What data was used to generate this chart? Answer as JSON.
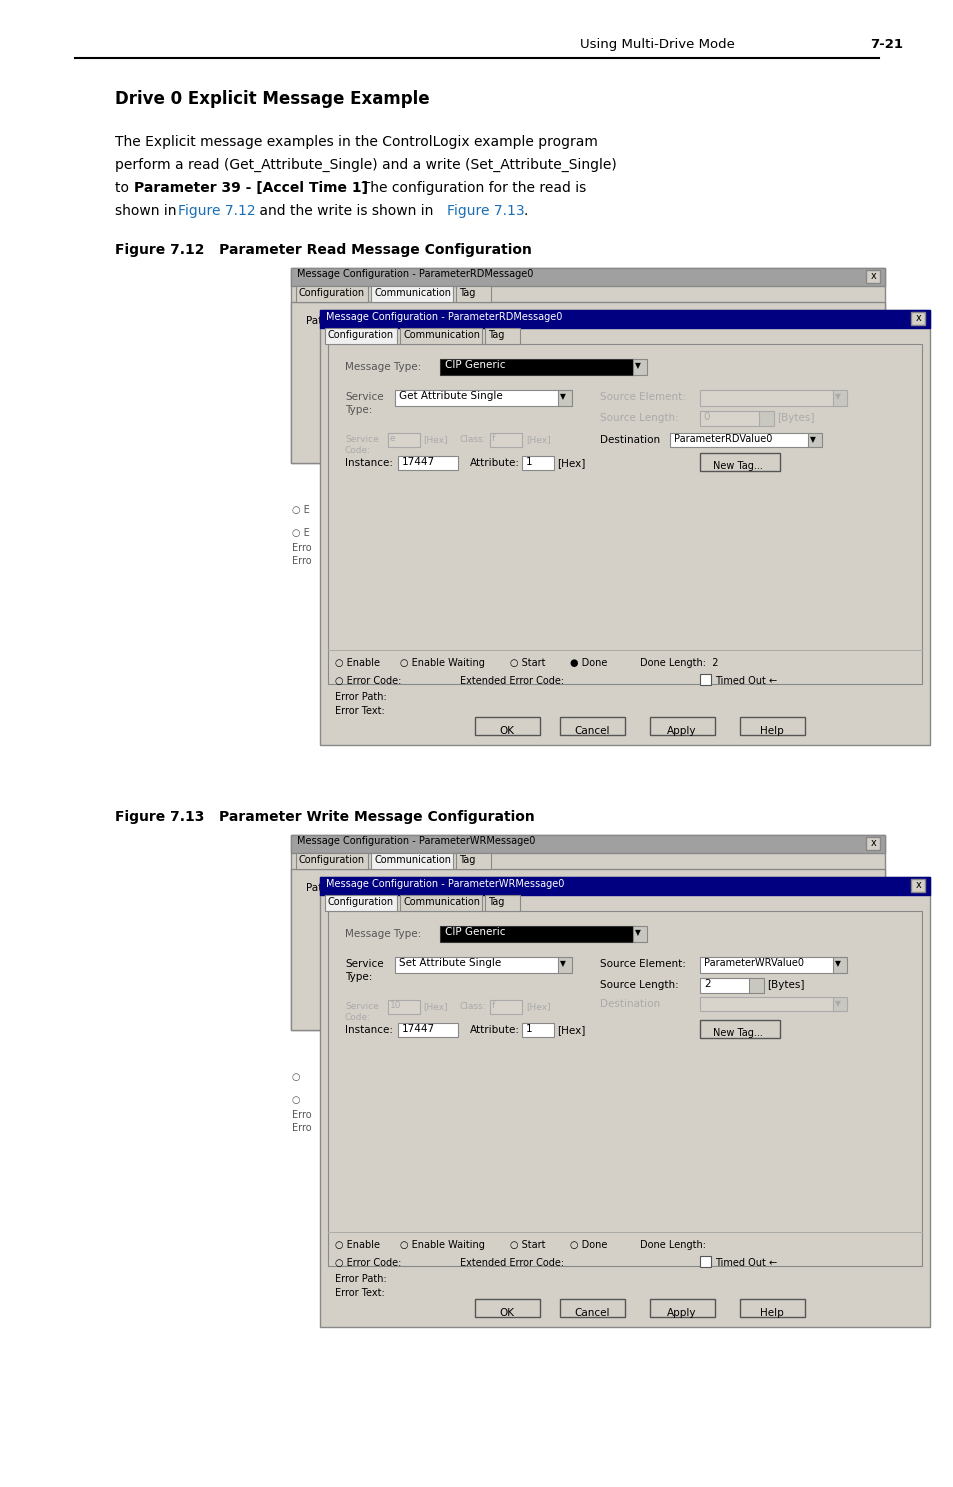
{
  "page_header_text": "Using Multi-Drive Mode",
  "page_number": "7-21",
  "section_title": "Drive 0 Explicit Message Example",
  "fig1_label": "Figure 7.12   Parameter Read Message Configuration",
  "fig2_label": "Figure 7.13   Parameter Write Message Configuration",
  "bg_color": "#ffffff",
  "dialog_bg": "#c8c4bc",
  "dialog_title_bg": "#000080",
  "link_color": "#1a6eb5",
  "fig1_rd_title": "Message Configuration - ParameterRDMessage0",
  "fig2_wr_title": "Message Configuration - ParameterWRMessage0"
}
